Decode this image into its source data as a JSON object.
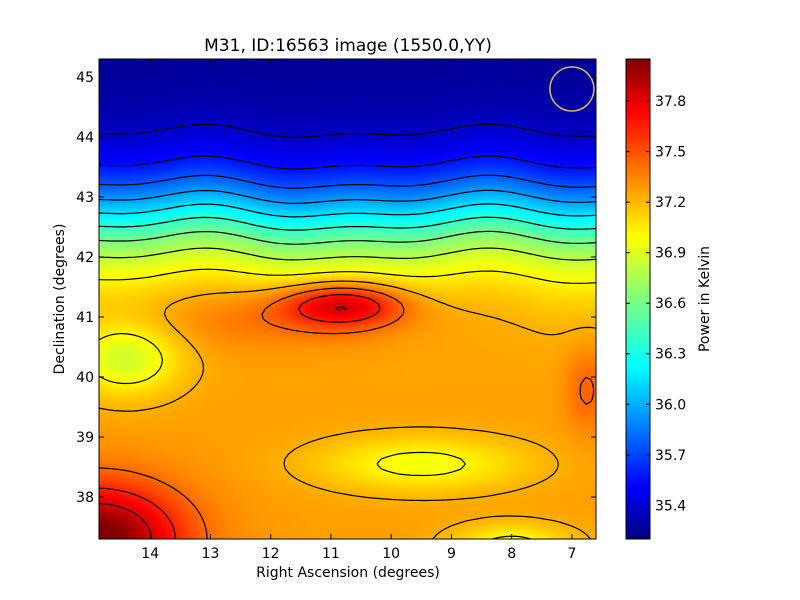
{
  "chart_data": {
    "type": "heatmap",
    "title": "M31, ID:16563 image (1550.0,YY)",
    "xlabel": "Right Ascension (degrees)",
    "ylabel": "Declination (degrees)",
    "colorbar_label": "Power in Kelvin",
    "colormap": "jet",
    "x_reversed": true,
    "xlim": [
      14.85,
      6.6
    ],
    "ylim": [
      37.3,
      45.3
    ],
    "x_ticks": [
      14,
      13,
      12,
      11,
      10,
      9,
      8,
      7
    ],
    "y_ticks": [
      38,
      39,
      40,
      41,
      42,
      43,
      44,
      45
    ],
    "colorbar_range": [
      35.2,
      38.05
    ],
    "colorbar_ticks": [
      "35.4",
      "35.7",
      "36.0",
      "36.3",
      "36.6",
      "36.9",
      "37.2",
      "37.5",
      "37.8"
    ],
    "features": [
      {
        "name": "peak",
        "ra": 10.8,
        "dec": 41.2,
        "value": 37.85
      },
      {
        "name": "hot corner",
        "ra": 14.8,
        "dec": 37.4,
        "value": 38.0
      },
      {
        "name": "cool spot",
        "ra": 14.3,
        "dec": 40.4,
        "value": 36.9
      },
      {
        "name": "cool band",
        "ra": 9.5,
        "dec": 38.6,
        "value": 37.0
      },
      {
        "name": "warm spot",
        "ra": 6.8,
        "dec": 39.8,
        "value": 37.45
      }
    ],
    "contours": "black contour lines",
    "beam_marker": {
      "ra": 7.0,
      "dec": 44.8,
      "color": "#c9b96a"
    },
    "grid": false
  }
}
